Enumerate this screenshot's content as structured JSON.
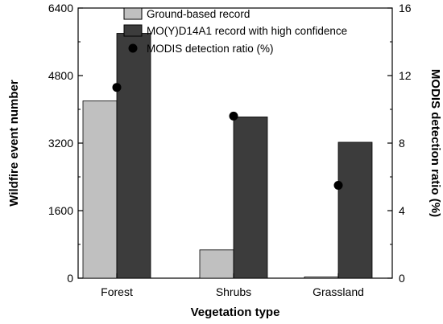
{
  "chart_data": {
    "type": "bar",
    "categories": [
      "Forest",
      "Shrubs",
      "Grassland"
    ],
    "series": [
      {
        "name": "Ground-based record",
        "axis": "left",
        "kind": "bar",
        "color": "#c0c0c0",
        "values": [
          4200,
          670,
          30
        ]
      },
      {
        "name": "MO(Y)D14A1 record with high confidence",
        "axis": "left",
        "kind": "bar",
        "color": "#3c3c3c",
        "values": [
          5800,
          3820,
          3220
        ]
      },
      {
        "name": "MODIS detection ratio (%)",
        "axis": "right",
        "kind": "scatter",
        "color": "#000000",
        "values": [
          11.3,
          9.6,
          5.5
        ]
      }
    ],
    "title": "",
    "xlabel": "Vegetation type",
    "ylabel": "Wildfire event number",
    "y2label": "MODIS detection ratio (%)",
    "ylim": [
      0,
      6400
    ],
    "y2lim": [
      0,
      16
    ],
    "yticks": [
      "0",
      "1600",
      "3200",
      "4800",
      "6400"
    ],
    "y2ticks": [
      "0",
      "4",
      "8",
      "12",
      "16"
    ],
    "legend_position": "top-right",
    "grid": false
  }
}
